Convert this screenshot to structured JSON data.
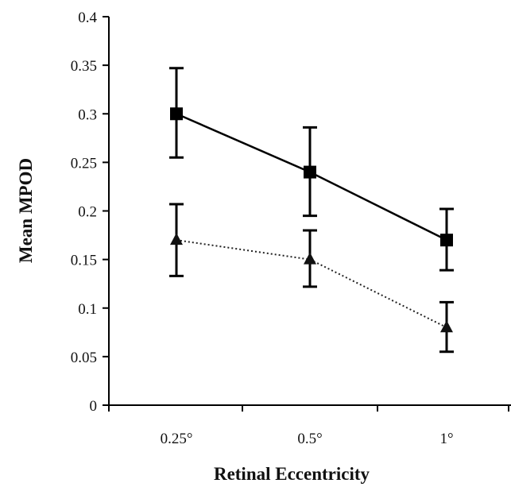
{
  "chart_data": {
    "type": "line",
    "title": "",
    "xlabel": "Retinal Eccentricity",
    "ylabel": "Mean MPOD",
    "categories": [
      "0.25°",
      "0.5°",
      "1°"
    ],
    "ylim": [
      0,
      0.4
    ],
    "yticks": [
      "0",
      "0.05",
      "0.1",
      "0.15",
      "0.2",
      "0.25",
      "0.3",
      "0.35",
      "0.4"
    ],
    "grid": false,
    "legend": "none",
    "series": [
      {
        "marker": "square",
        "line_style": "solid",
        "color": "#000000",
        "values": [
          0.3,
          0.24,
          0.17
        ],
        "error_upper": [
          0.347,
          0.286,
          0.202
        ],
        "error_lower": [
          0.255,
          0.195,
          0.139
        ]
      },
      {
        "marker": "triangle",
        "line_style": "dotted",
        "color": "#222222",
        "values": [
          0.17,
          0.15,
          0.08
        ],
        "error_upper": [
          0.207,
          0.18,
          0.106
        ],
        "error_lower": [
          0.133,
          0.122,
          0.055
        ]
      }
    ]
  }
}
